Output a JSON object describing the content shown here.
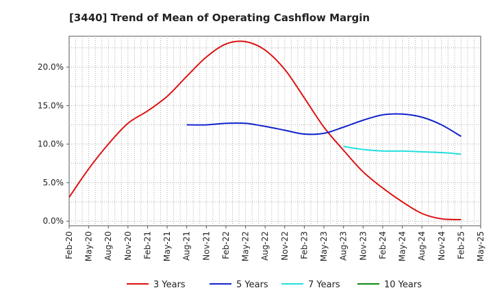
{
  "chart_data": {
    "type": "line",
    "title": "[3440]  Trend of Mean of Operating Cashflow Margin",
    "xlabel": "",
    "ylabel": "",
    "x": [
      "Feb-20",
      "May-20",
      "Aug-20",
      "Nov-20",
      "Feb-21",
      "May-21",
      "Aug-21",
      "Nov-21",
      "Feb-22",
      "May-22",
      "Aug-22",
      "Nov-22",
      "Feb-23",
      "May-23",
      "Aug-23",
      "Nov-23",
      "Feb-24",
      "May-24",
      "Aug-24",
      "Nov-24",
      "Feb-25",
      "May-25"
    ],
    "yticks": [
      0,
      5,
      10,
      15,
      20
    ],
    "ytick_labels": [
      "0.0%",
      "5.0%",
      "10.0%",
      "15.0%",
      "20.0%"
    ],
    "ylim": [
      -0.6,
      24
    ],
    "grid": true,
    "legend_position": "bottom",
    "series": [
      {
        "name": "3 Years",
        "color": "#dd1111",
        "values": [
          3.1,
          6.8,
          10.0,
          12.7,
          14.3,
          16.2,
          18.8,
          21.3,
          23.0,
          23.3,
          22.2,
          19.7,
          16.0,
          12.2,
          9.2,
          6.4,
          4.3,
          2.5,
          1.0,
          0.3,
          0.2,
          null
        ]
      },
      {
        "name": "5 Years",
        "color": "#1122cc",
        "values": [
          null,
          null,
          null,
          null,
          null,
          null,
          12.5,
          12.5,
          12.7,
          12.7,
          12.3,
          11.8,
          11.3,
          11.4,
          12.2,
          13.1,
          13.8,
          13.9,
          13.5,
          12.5,
          11.0,
          null
        ]
      },
      {
        "name": "7 Years",
        "color": "#22dddd",
        "values": [
          null,
          null,
          null,
          null,
          null,
          null,
          null,
          null,
          null,
          null,
          null,
          null,
          null,
          null,
          9.7,
          9.3,
          9.1,
          9.1,
          9.0,
          8.9,
          8.7,
          null
        ]
      },
      {
        "name": "10 Years",
        "color": "#118811",
        "values": [
          null,
          null,
          null,
          null,
          null,
          null,
          null,
          null,
          null,
          null,
          null,
          null,
          null,
          null,
          null,
          null,
          null,
          null,
          null,
          null,
          null,
          null
        ]
      }
    ]
  }
}
